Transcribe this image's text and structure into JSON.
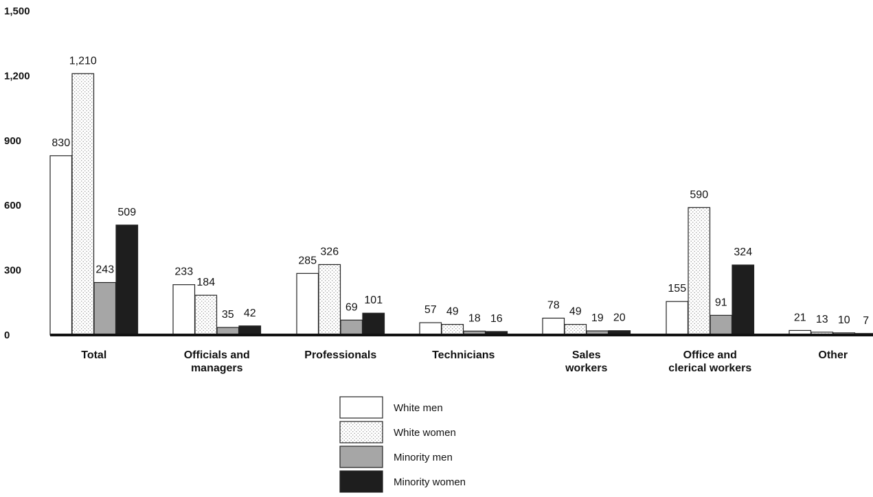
{
  "chart_data": {
    "type": "bar",
    "title": "",
    "xlabel": "",
    "ylabel": "",
    "ylim": [
      0,
      1500
    ],
    "yticks": [
      0,
      300,
      600,
      900,
      1200,
      1500
    ],
    "ytick_labels": [
      "0",
      "300",
      "600",
      "900",
      "1,200",
      "1,500"
    ],
    "grid": false,
    "legend_position": "bottom-center",
    "categories": [
      [
        "Total"
      ],
      [
        "Officials and",
        "managers"
      ],
      [
        "Professionals"
      ],
      [
        "Technicians"
      ],
      [
        "Sales",
        "workers"
      ],
      [
        "Office and",
        "clerical workers"
      ],
      [
        "Other"
      ]
    ],
    "series": [
      {
        "name": "White men",
        "fill": "white",
        "values": [
          830,
          233,
          285,
          57,
          78,
          155,
          21
        ],
        "labels": [
          "830",
          "233",
          "285",
          "57",
          "78",
          "155",
          "21"
        ]
      },
      {
        "name": "White women",
        "fill": "dotted",
        "values": [
          1210,
          184,
          326,
          49,
          49,
          590,
          13
        ],
        "labels": [
          "1,210",
          "184",
          "326",
          "49",
          "49",
          "590",
          "13"
        ]
      },
      {
        "name": "Minority men",
        "fill": "gray",
        "values": [
          243,
          35,
          69,
          18,
          19,
          91,
          10
        ],
        "labels": [
          "243",
          "35",
          "69",
          "18",
          "19",
          "91",
          "10"
        ]
      },
      {
        "name": "Minority women",
        "fill": "black",
        "values": [
          509,
          42,
          101,
          16,
          20,
          324,
          7
        ],
        "labels": [
          "509",
          "42",
          "101",
          "16",
          "20",
          "324",
          "7"
        ]
      }
    ],
    "colors": {
      "white": "#ffffff",
      "gray": "#a6a6a6",
      "black": "#1e1e1e",
      "dot": "#9a9a9a",
      "stroke": "#222222"
    }
  }
}
